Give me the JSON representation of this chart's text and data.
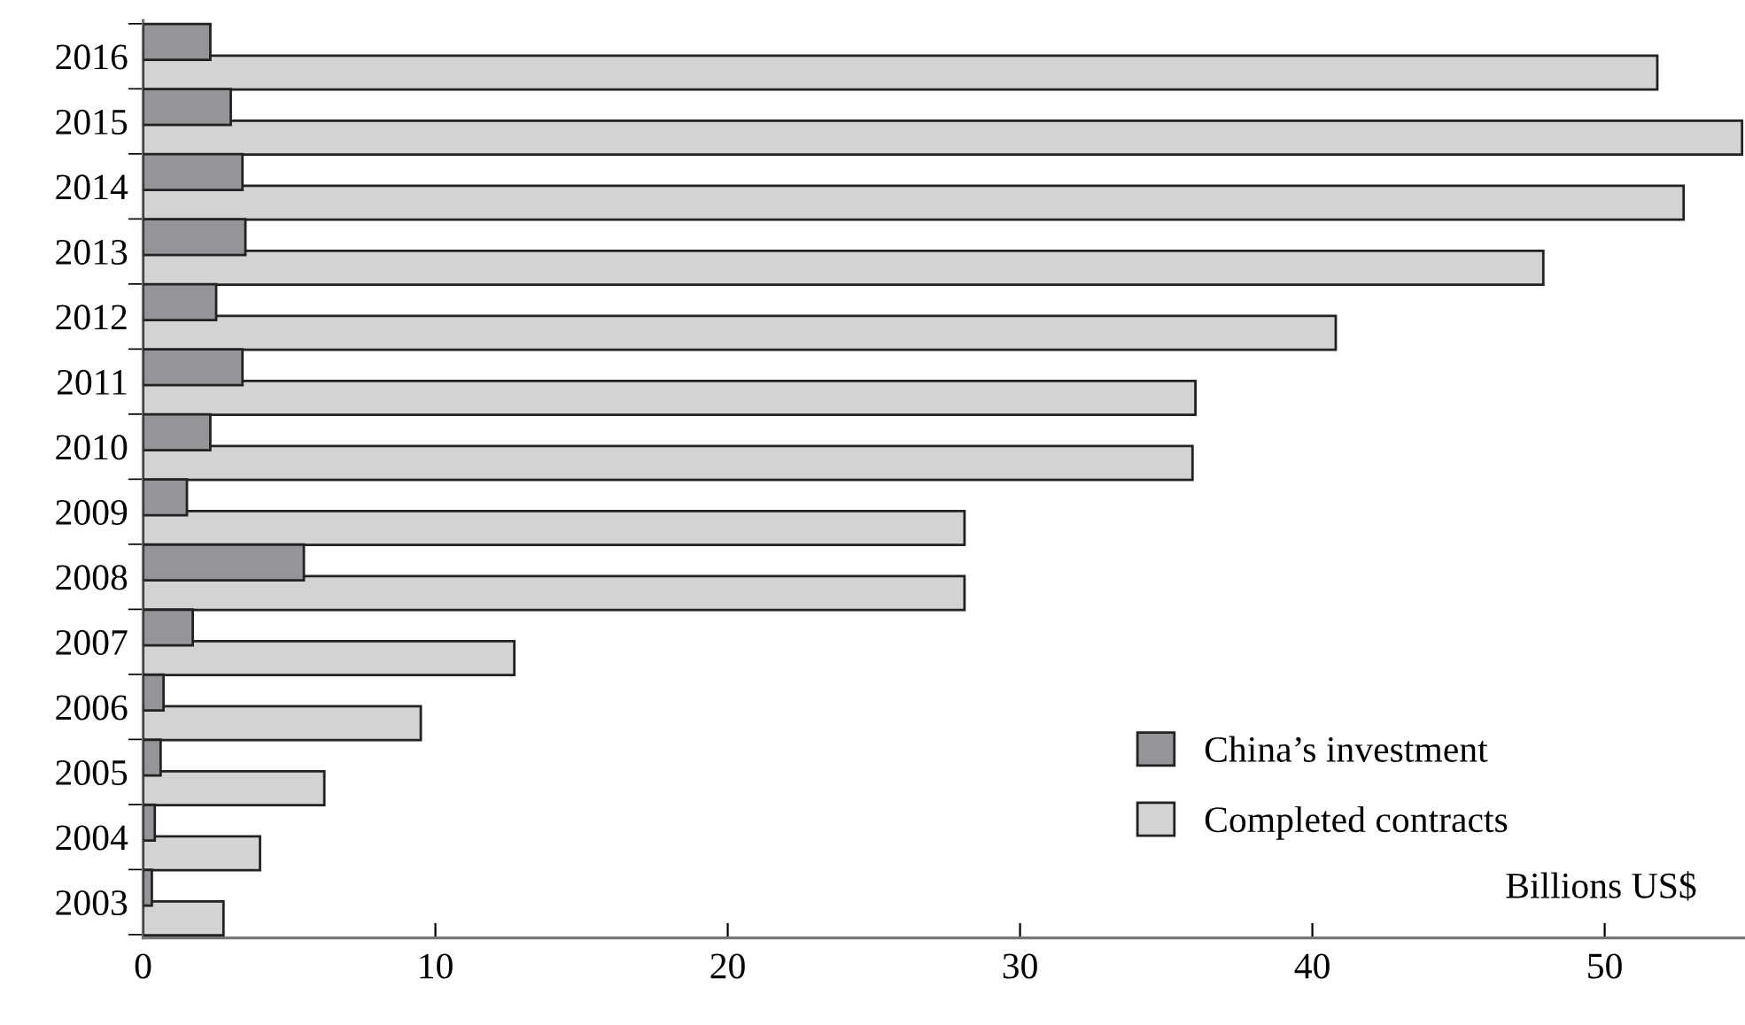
{
  "chart_data": {
    "type": "bar",
    "orientation": "horizontal",
    "categories": [
      "2016",
      "2015",
      "2014",
      "2013",
      "2012",
      "2011",
      "2010",
      "2009",
      "2008",
      "2007",
      "2006",
      "2005",
      "2004",
      "2003"
    ],
    "series": [
      {
        "name": "China’s investment",
        "color": "#949598",
        "values": [
          2.3,
          3.0,
          3.4,
          3.5,
          2.5,
          3.4,
          2.3,
          1.5,
          5.5,
          1.7,
          0.7,
          0.6,
          0.4,
          0.3
        ]
      },
      {
        "name": "Completed contracts",
        "color": "#d2d3d5",
        "values": [
          51.8,
          54.7,
          52.7,
          47.9,
          40.8,
          36.0,
          35.9,
          28.1,
          28.1,
          12.7,
          9.5,
          6.2,
          4.0,
          2.75
        ]
      }
    ],
    "xlim": [
      0,
      54.8
    ],
    "xticks": [
      0,
      10,
      20,
      30,
      40,
      50
    ],
    "annotations": [
      "Billions US$"
    ],
    "legend": "right",
    "grid": false
  }
}
